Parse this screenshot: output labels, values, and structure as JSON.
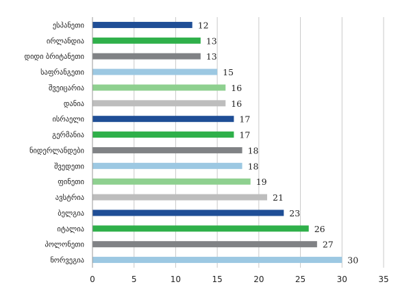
{
  "chart_data": {
    "type": "bar",
    "orientation": "horizontal",
    "categories": [
      "ესპანეთი",
      "ირლანდია",
      "დიდი ბრიტანეთი",
      "საფრანგეთი",
      "შვეიცარია",
      "დანია",
      "ისრაელი",
      "გერმანია",
      "ნიდერლანდები",
      "შვედეთი",
      "ფინეთი",
      "ავსტრია",
      "ბელგია",
      "იტალია",
      "პოლონეთი",
      "ნორვეგია"
    ],
    "values": [
      12,
      13,
      13,
      15,
      16,
      16,
      17,
      17,
      18,
      18,
      19,
      21,
      23,
      26,
      27,
      30
    ],
    "value_labels": [
      "12",
      "13",
      "13",
      "15",
      "16",
      "16",
      "17",
      "17",
      "18",
      "18",
      "19",
      "21",
      "23",
      "26",
      "27",
      "30"
    ],
    "bar_colors": [
      "#1f4e96",
      "#2fb04a",
      "#808285",
      "#9cc8e2",
      "#8ed08f",
      "#bdbdbd",
      "#1f4e96",
      "#2fb04a",
      "#808285",
      "#9cc8e2",
      "#8ed08f",
      "#bdbdbd",
      "#1f4e96",
      "#2fb04a",
      "#808285",
      "#9cc8e2"
    ],
    "x_ticks": [
      0,
      5,
      10,
      15,
      20,
      25,
      30,
      35
    ],
    "x_tick_labels": [
      "0",
      "5",
      "10",
      "15",
      "20",
      "25",
      "30",
      "35"
    ],
    "xlim": [
      0,
      35
    ],
    "title": "",
    "xlabel": "",
    "ylabel": "",
    "grid": "vertical",
    "grid_color": "#c8c8c8",
    "legend": "none"
  }
}
